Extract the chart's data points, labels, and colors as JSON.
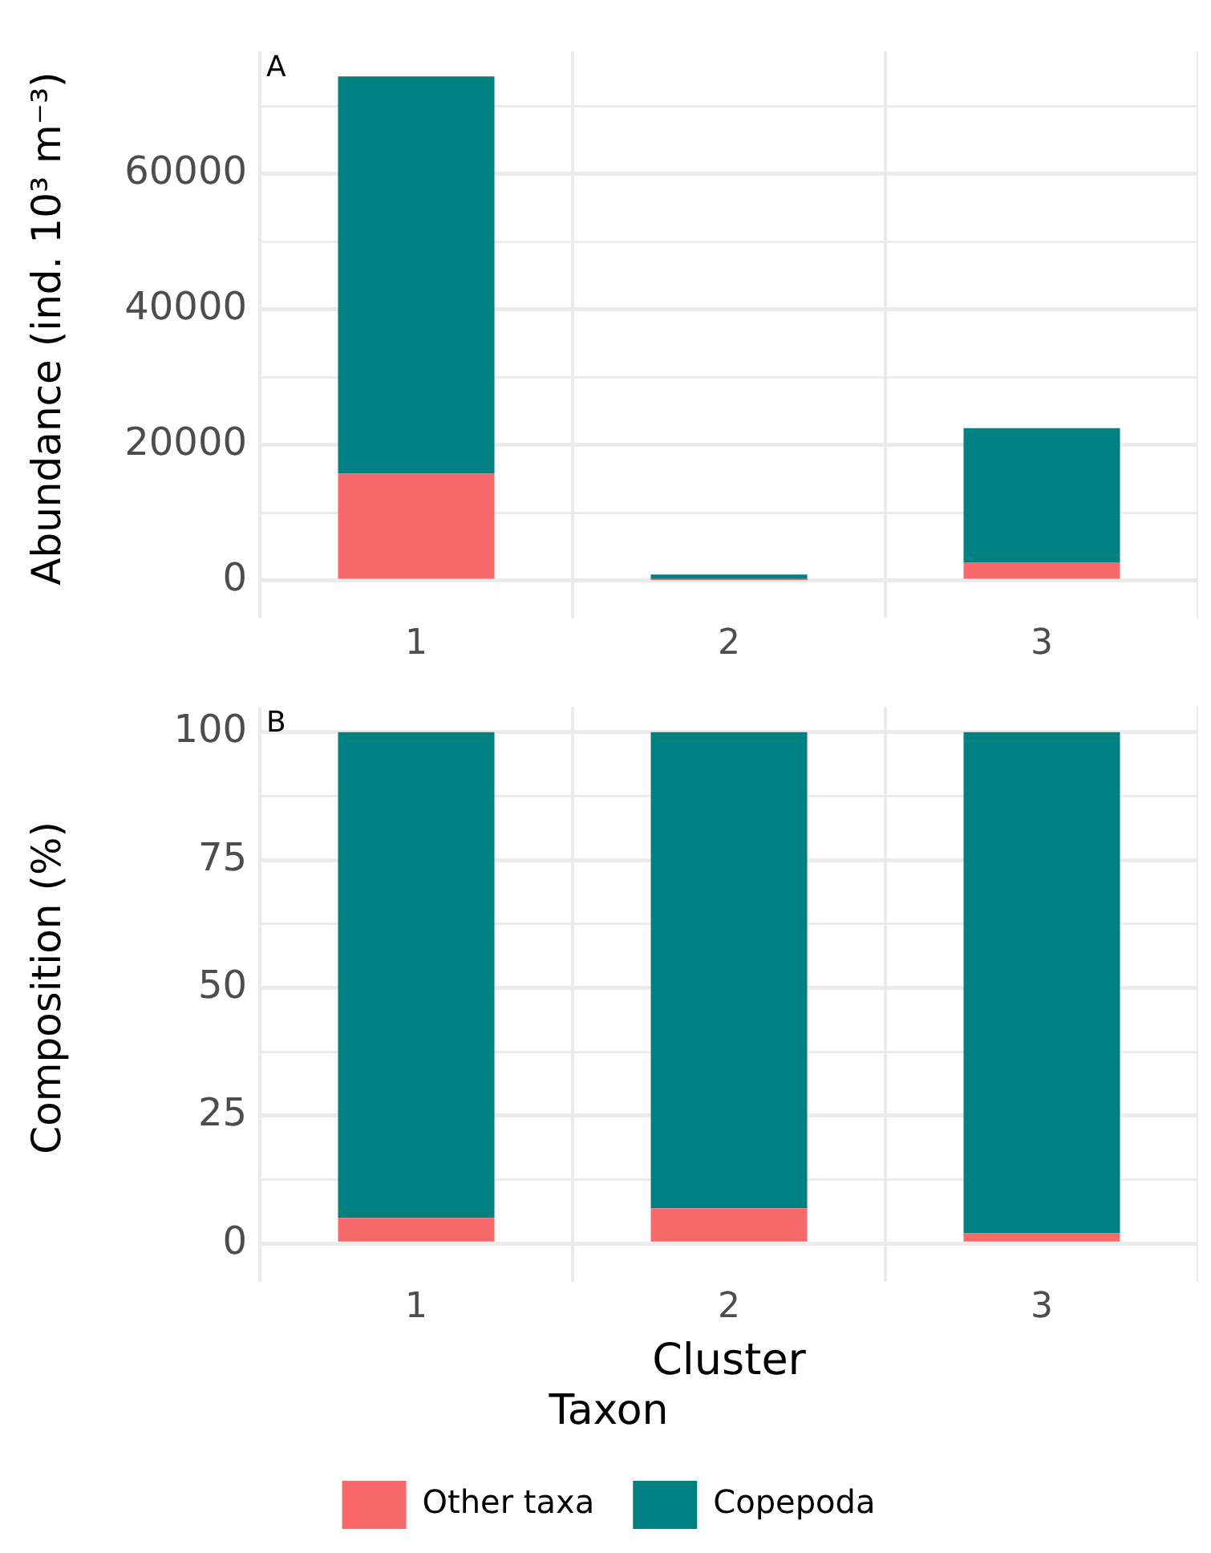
{
  "chart_data": [
    {
      "type": "bar",
      "categories": [
        "1",
        "2",
        "3"
      ],
      "stacked": true,
      "ylabel": "Abundance (ind. 10³ m⁻³)",
      "annotations": [
        "A"
      ],
      "ylim": [
        -3700,
        78100
      ],
      "yticks": [
        0,
        {
          "value": 10000,
          "label": null
        },
        20000,
        {
          "value": 30000,
          "label": null
        },
        40000,
        {
          "value": 50000,
          "label": null
        },
        60000,
        {
          "value": 70000,
          "label": null
        }
      ],
      "grid": true,
      "legend": false,
      "series": [
        {
          "color": "#f8696b",
          "values": [
            15800,
            100,
            2700
          ]
        },
        {
          "color": "#008080",
          "values": [
            58600,
            800,
            19800
          ]
        }
      ]
    },
    {
      "type": "bar",
      "categories": [
        "1",
        "2",
        "3"
      ],
      "stacked": true,
      "xlabel": "Cluster",
      "ylabel": "Composition (%)",
      "annotations": [
        "B"
      ],
      "ylim": [
        -5,
        105
      ],
      "yticks": [
        0,
        {
          "value": 12.5,
          "label": null
        },
        25,
        {
          "value": 37.5,
          "label": null
        },
        50,
        {
          "value": 62.5,
          "label": null
        },
        75,
        {
          "value": 87.5,
          "label": null
        },
        100
      ],
      "grid": true,
      "legend": "bottom",
      "legend_title": "Taxon",
      "series": [
        {
          "name": "Other taxa",
          "color": "#f8696b",
          "values": [
            5,
            6.9,
            2
          ]
        },
        {
          "name": "Copepoda",
          "color": "#008080",
          "values": [
            95,
            93.1,
            98
          ]
        }
      ]
    }
  ]
}
